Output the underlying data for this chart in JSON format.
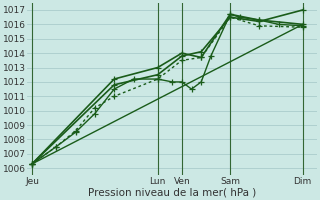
{
  "xlabel": "Pression niveau de la mer( hPa )",
  "bg_color": "#cce8e4",
  "grid_color": "#aacccc",
  "line_color": "#1a5c1a",
  "vline_color": "#336633",
  "ylim": [
    1005.5,
    1017.5
  ],
  "yticks": [
    1006,
    1007,
    1008,
    1009,
    1010,
    1011,
    1012,
    1013,
    1014,
    1015,
    1016,
    1017
  ],
  "xlim": [
    0,
    30
  ],
  "day_labels": [
    "Jeu",
    "Lun",
    "Ven",
    "Sam",
    "Dim"
  ],
  "day_positions": [
    0.5,
    13.5,
    16.0,
    21.0,
    28.5
  ],
  "vline_positions": [
    0.5,
    13.5,
    16.0,
    21.0,
    28.5
  ],
  "series": [
    {
      "x": [
        0.5,
        3,
        5,
        7,
        9,
        13.5,
        16.0,
        18,
        21.0,
        24,
        28.5
      ],
      "y": [
        1006.3,
        1007.5,
        1008.6,
        1010.2,
        1011.0,
        1012.2,
        1013.5,
        1013.7,
        1016.5,
        1015.9,
        1015.8
      ],
      "style": "dotted",
      "lw": 1.0
    },
    {
      "x": [
        0.5,
        3,
        5,
        7,
        9,
        11,
        13.5,
        15,
        16.0,
        17,
        18,
        19,
        21.0,
        22,
        24,
        26,
        28.5
      ],
      "y": [
        1006.3,
        1007.5,
        1008.5,
        1009.8,
        1011.5,
        1012.2,
        1012.2,
        1012.0,
        1012.0,
        1011.5,
        1012.0,
        1013.8,
        1016.7,
        1016.5,
        1016.3,
        1016.0,
        1015.9
      ],
      "style": "solid",
      "lw": 1.0
    },
    {
      "x": [
        0.5,
        9,
        13.5,
        16.0,
        18,
        21.0,
        24,
        28.5
      ],
      "y": [
        1006.3,
        1011.8,
        1012.5,
        1013.8,
        1014.1,
        1016.5,
        1016.2,
        1017.0
      ],
      "style": "solid",
      "lw": 1.2
    },
    {
      "x": [
        0.5,
        9,
        13.5,
        16.0,
        18,
        21.0,
        24,
        28.5
      ],
      "y": [
        1006.3,
        1012.2,
        1013.0,
        1014.0,
        1013.7,
        1016.7,
        1016.3,
        1016.0
      ],
      "style": "solid",
      "lw": 1.2
    },
    {
      "x": [
        0.5,
        28.5
      ],
      "y": [
        1006.3,
        1016.0
      ],
      "style": "solid",
      "lw": 1.0,
      "no_marker": true
    }
  ]
}
